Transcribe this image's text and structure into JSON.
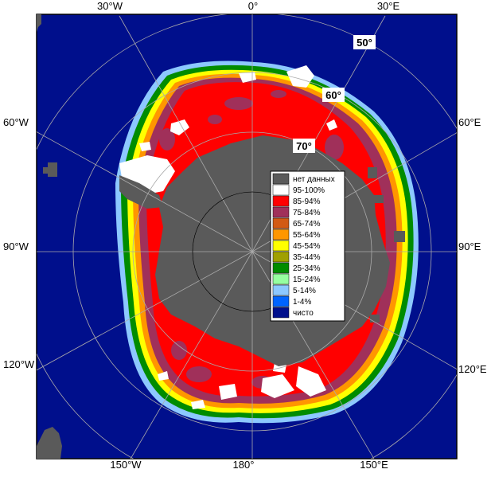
{
  "map": {
    "background": "#ffffff",
    "ocean_color": "#000f8c",
    "land_color": "#5a5a5a",
    "grid_color": "#aaaaaa",
    "longitude_labels": {
      "top": [
        "30°W",
        "0°",
        "30°E"
      ],
      "bottom": [
        "150°W",
        "180°",
        "150°E"
      ],
      "left": [
        "60°W",
        "90°W",
        "120°W"
      ],
      "right": [
        "60°E",
        "90°E",
        "120°E"
      ]
    },
    "latitude_labels": [
      "50°",
      "60°",
      "70°"
    ]
  },
  "legend": {
    "items": [
      {
        "label": "нет данных",
        "color": "#5a5a5a"
      },
      {
        "label": "95-100%",
        "color": "#ffffff"
      },
      {
        "label": "85-94%",
        "color": "#ff0000"
      },
      {
        "label": "75-84%",
        "color": "#a0305a"
      },
      {
        "label": "65-74%",
        "color": "#d25a14"
      },
      {
        "label": "55-64%",
        "color": "#ff9600"
      },
      {
        "label": "45-54%",
        "color": "#ffff00"
      },
      {
        "label": "35-44%",
        "color": "#a0a000"
      },
      {
        "label": "25-34%",
        "color": "#008c00"
      },
      {
        "label": "15-24%",
        "color": "#96ffa0"
      },
      {
        "label": "5-14%",
        "color": "#8cc8ff"
      },
      {
        "label": "1-4%",
        "color": "#0064ff"
      },
      {
        "label": "чисто",
        "color": "#000f8c"
      }
    ]
  }
}
